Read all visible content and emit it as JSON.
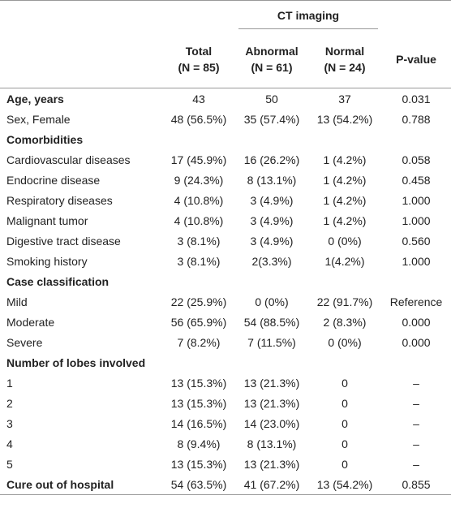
{
  "table": {
    "group_header": "CT imaging",
    "columns": [
      {
        "name": "Total",
        "n": "(N = 85)"
      },
      {
        "name": "Abnormal",
        "n": "(N = 61)"
      },
      {
        "name": "Normal",
        "n": "(N = 24)"
      },
      {
        "name": "P-value"
      }
    ],
    "rows": [
      {
        "label": "Age, years",
        "bold": true,
        "cells": [
          "43",
          "50",
          "37",
          "0.031"
        ]
      },
      {
        "label": "Sex, Female",
        "cells": [
          "48 (56.5%)",
          "35 (57.4%)",
          "13 (54.2%)",
          "0.788"
        ]
      },
      {
        "label": "Comorbidities",
        "bold": true,
        "cells": []
      },
      {
        "label": "Cardiovascular diseases",
        "cells": [
          "17 (45.9%)",
          "16 (26.2%)",
          "1 (4.2%)",
          "0.058"
        ]
      },
      {
        "label": "Endocrine disease",
        "cells": [
          "9 (24.3%)",
          "8 (13.1%)",
          "1 (4.2%)",
          "0.458"
        ]
      },
      {
        "label": "Respiratory diseases",
        "cells": [
          "4 (10.8%)",
          "3 (4.9%)",
          "1 (4.2%)",
          "1.000"
        ]
      },
      {
        "label": "Malignant tumor",
        "cells": [
          "4 (10.8%)",
          "3 (4.9%)",
          "1 (4.2%)",
          "1.000"
        ]
      },
      {
        "label": "Digestive tract disease",
        "cells": [
          "3 (8.1%)",
          "3 (4.9%)",
          "0 (0%)",
          "0.560"
        ]
      },
      {
        "label": "Smoking history",
        "cells": [
          "3 (8.1%)",
          "2(3.3%)",
          "1(4.2%)",
          "1.000"
        ]
      },
      {
        "label": "Case classification",
        "bold": true,
        "cells": []
      },
      {
        "label": "Mild",
        "cells": [
          "22 (25.9%)",
          "0 (0%)",
          "22 (91.7%)",
          "Reference"
        ]
      },
      {
        "label": "Moderate",
        "cells": [
          "56 (65.9%)",
          "54 (88.5%)",
          "2 (8.3%)",
          "0.000"
        ]
      },
      {
        "label": "Severe",
        "cells": [
          "7 (8.2%)",
          "7 (11.5%)",
          "0 (0%)",
          "0.000"
        ]
      },
      {
        "label": "Number of lobes involved",
        "bold": true,
        "cells": []
      },
      {
        "label": "1",
        "cells": [
          "13 (15.3%)",
          "13 (21.3%)",
          "0",
          "–"
        ]
      },
      {
        "label": "2",
        "cells": [
          "13 (15.3%)",
          "13 (21.3%)",
          "0",
          "–"
        ]
      },
      {
        "label": "3",
        "cells": [
          "14 (16.5%)",
          "14 (23.0%)",
          "0",
          "–"
        ]
      },
      {
        "label": "4",
        "cells": [
          "8 (9.4%)",
          "8 (13.1%)",
          "0",
          "–"
        ]
      },
      {
        "label": "5",
        "cells": [
          "13 (15.3%)",
          "13 (21.3%)",
          "0",
          "–"
        ]
      },
      {
        "label": "Cure out of hospital",
        "bold": true,
        "cells": [
          "54 (63.5%)",
          "41 (67.2%)",
          "13 (54.2%)",
          "0.855"
        ]
      }
    ]
  }
}
